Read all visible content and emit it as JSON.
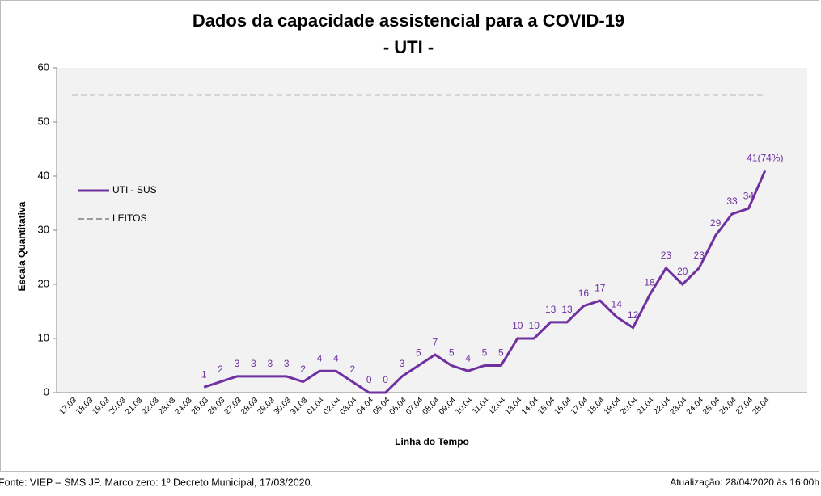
{
  "chart_data": {
    "type": "line",
    "title": "Dados da capacidade assistencial para a COVID-19",
    "subtitle": "- UTI -",
    "y_label": "Escala Quantitativa",
    "x_label": "Linha do Tempo",
    "source": "Fonte: VIEP – SMS JP. Marco zero: 1º Decreto Municipal, 17/03/2020.",
    "updated": "Atualização: 28/04/2020 às 16:00h",
    "categories": [
      "17.03",
      "18.03",
      "19.03",
      "20.03",
      "21.03",
      "22.03",
      "23.03",
      "24.03",
      "25.03",
      "26.03",
      "27.03",
      "28.03",
      "29.03",
      "30.03",
      "31.03",
      "01.04",
      "02.04",
      "03.04",
      "04.04",
      "05.04",
      "06.04",
      "07.04",
      "08.04",
      "09.04",
      "10.04",
      "11.04",
      "12.04",
      "13.04",
      "14.04",
      "15.04",
      "16.04",
      "17.04",
      "18.04",
      "19.04",
      "20.04",
      "21.04",
      "22.04",
      "23.04",
      "24.04",
      "25.04",
      "26.04",
      "27.04",
      "28.04"
    ],
    "series": [
      {
        "name": "UTI - SUS",
        "color": "#7030a0",
        "values": [
          null,
          null,
          null,
          null,
          null,
          null,
          null,
          null,
          1,
          2,
          3,
          3,
          3,
          3,
          2,
          4,
          4,
          2,
          0,
          0,
          3,
          5,
          7,
          5,
          4,
          5,
          5,
          10,
          10,
          13,
          13,
          16,
          17,
          14,
          12,
          18,
          23,
          20,
          23,
          29,
          33,
          34,
          41
        ],
        "value_labels": [
          null,
          null,
          null,
          null,
          null,
          null,
          null,
          null,
          null,
          null,
          null,
          null,
          null,
          null,
          null,
          null,
          null,
          null,
          null,
          null,
          null,
          null,
          null,
          null,
          null,
          null,
          null,
          null,
          null,
          null,
          null,
          null,
          null,
          null,
          null,
          null,
          null,
          null,
          null,
          null,
          null,
          null,
          "41(74%)"
        ]
      },
      {
        "name": "LEITOS",
        "color": "#7f7f7f",
        "dashed": true,
        "values": [
          55,
          55,
          55,
          55,
          55,
          55,
          55,
          55,
          55,
          55,
          55,
          55,
          55,
          55,
          55,
          55,
          55,
          55,
          55,
          55,
          55,
          55,
          55,
          55,
          55,
          55,
          55,
          55,
          55,
          55,
          55,
          55,
          55,
          55,
          55,
          55,
          55,
          55,
          55,
          55,
          55,
          55,
          55
        ]
      }
    ],
    "ylim": [
      0,
      60
    ],
    "yticks": [
      0,
      10,
      20,
      30,
      40,
      50,
      60
    ],
    "legend": "left"
  }
}
